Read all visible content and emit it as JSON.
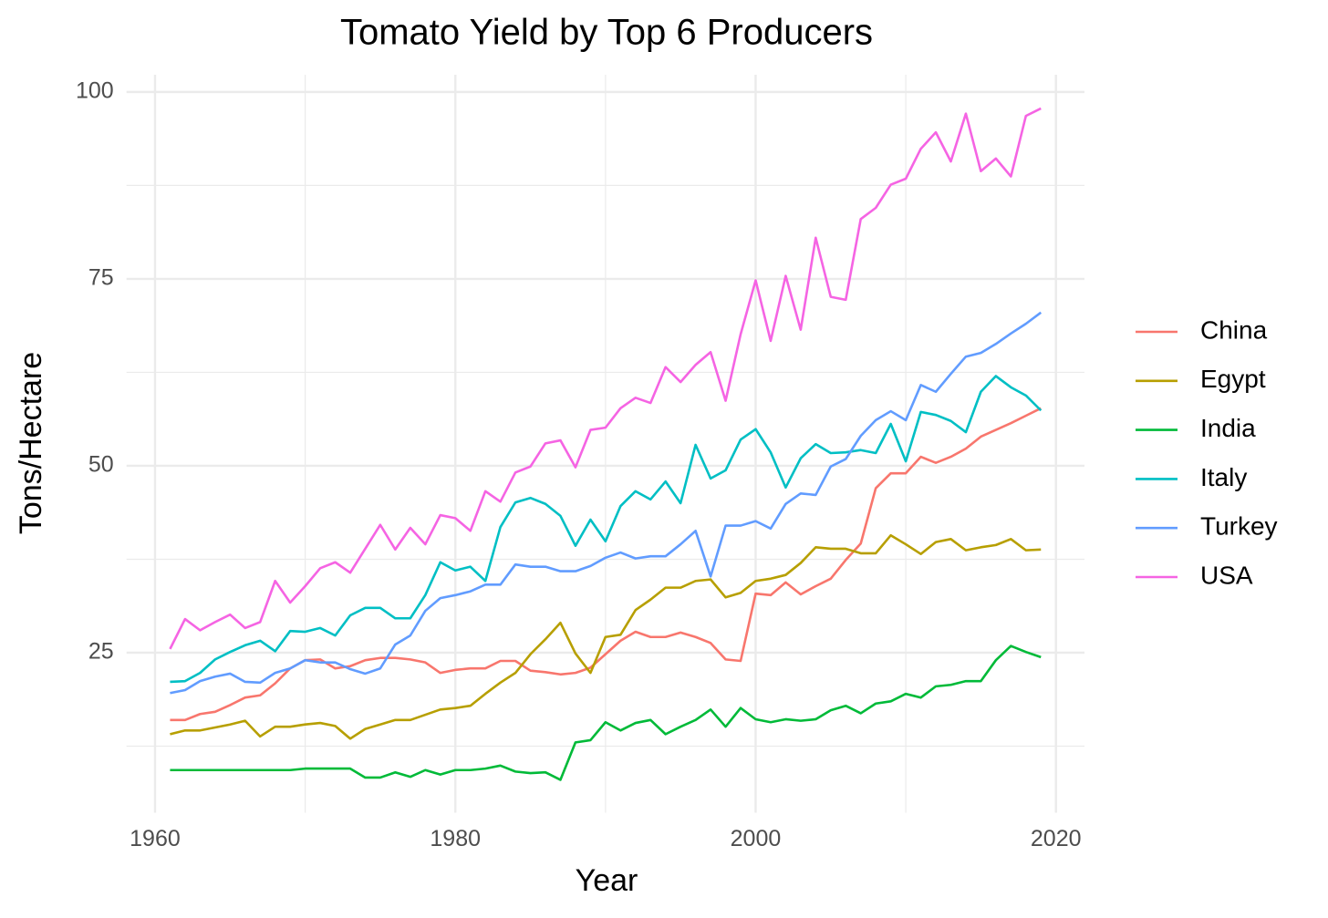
{
  "chart_data": {
    "type": "line",
    "title": "Tomato Yield by Top 6 Producers",
    "x_label": "Year",
    "y_label": "Tons/Hectare",
    "x": [
      1961,
      1962,
      1963,
      1964,
      1965,
      1966,
      1967,
      1968,
      1969,
      1970,
      1971,
      1972,
      1973,
      1974,
      1975,
      1976,
      1977,
      1978,
      1979,
      1980,
      1981,
      1982,
      1983,
      1984,
      1985,
      1986,
      1987,
      1988,
      1989,
      1990,
      1991,
      1992,
      1993,
      1994,
      1995,
      1996,
      1997,
      1998,
      1999,
      2000,
      2001,
      2002,
      2003,
      2004,
      2005,
      2006,
      2007,
      2008,
      2009,
      2010,
      2011,
      2012,
      2013,
      2014,
      2015,
      2016,
      2017,
      2018,
      2019
    ],
    "series": [
      {
        "name": "China",
        "color": "#F8766D",
        "values": [
          16.0,
          16.0,
          16.8,
          17.1,
          18.0,
          19.0,
          19.3,
          20.9,
          22.9,
          24.0,
          24.1,
          22.9,
          23.2,
          24.0,
          24.3,
          24.3,
          24.1,
          23.7,
          22.3,
          22.7,
          22.9,
          22.9,
          23.9,
          23.9,
          22.6,
          22.4,
          22.1,
          22.3,
          23.0,
          24.8,
          26.6,
          27.8,
          27.1,
          27.1,
          27.7,
          27.1,
          26.3,
          24.1,
          23.9,
          32.9,
          32.7,
          34.4,
          32.8,
          33.9,
          34.9,
          37.4,
          39.6,
          47.0,
          49.0,
          49.0,
          51.2,
          50.4,
          51.2,
          52.3,
          53.9,
          54.8,
          55.7,
          56.7,
          57.7
        ]
      },
      {
        "name": "Egypt",
        "color": "#B79F00",
        "values": [
          14.1,
          14.6,
          14.6,
          15.0,
          15.4,
          15.9,
          13.8,
          15.1,
          15.1,
          15.4,
          15.6,
          15.2,
          13.5,
          14.8,
          15.4,
          16.0,
          16.0,
          16.7,
          17.4,
          17.6,
          17.9,
          19.5,
          21.0,
          22.3,
          24.8,
          26.8,
          29.0,
          24.9,
          22.3,
          27.1,
          27.4,
          30.7,
          32.1,
          33.7,
          33.7,
          34.6,
          34.8,
          32.4,
          33.0,
          34.6,
          34.9,
          35.4,
          37.0,
          39.1,
          38.9,
          38.9,
          38.3,
          38.3,
          40.7,
          39.5,
          38.2,
          39.8,
          40.2,
          38.7,
          39.1,
          39.4,
          40.2,
          38.7,
          38.8
        ]
      },
      {
        "name": "India",
        "color": "#00BA38",
        "values": [
          9.3,
          9.3,
          9.3,
          9.3,
          9.3,
          9.3,
          9.3,
          9.3,
          9.3,
          9.5,
          9.5,
          9.5,
          9.5,
          8.3,
          8.3,
          9.0,
          8.4,
          9.3,
          8.7,
          9.3,
          9.3,
          9.5,
          9.9,
          9.1,
          8.9,
          9.0,
          8.0,
          13.0,
          13.3,
          15.7,
          14.6,
          15.6,
          16.0,
          14.1,
          15.1,
          16.0,
          17.4,
          15.1,
          17.6,
          16.1,
          15.7,
          16.1,
          15.9,
          16.1,
          17.3,
          17.9,
          16.9,
          18.2,
          18.5,
          19.5,
          19.0,
          20.5,
          20.7,
          21.2,
          21.2,
          24.0,
          25.9,
          25.1,
          24.4
        ]
      },
      {
        "name": "Italy",
        "color": "#00BFC4",
        "values": [
          21.1,
          21.2,
          22.3,
          24.1,
          25.1,
          26.0,
          26.6,
          25.2,
          27.9,
          27.8,
          28.3,
          27.3,
          30.0,
          31.0,
          31.0,
          29.6,
          29.6,
          32.7,
          37.1,
          36.0,
          36.5,
          34.6,
          41.8,
          45.1,
          45.7,
          44.9,
          43.3,
          39.3,
          42.8,
          39.9,
          44.6,
          46.6,
          45.5,
          47.9,
          45.0,
          52.8,
          48.3,
          49.4,
          53.5,
          54.9,
          51.8,
          47.1,
          51.0,
          52.9,
          51.7,
          51.8,
          52.1,
          51.7,
          55.6,
          50.6,
          57.2,
          56.8,
          56.0,
          54.5,
          59.9,
          62.0,
          60.5,
          59.4,
          57.4
        ]
      },
      {
        "name": "Turkey",
        "color": "#619CFF",
        "values": [
          19.6,
          20.0,
          21.2,
          21.8,
          22.2,
          21.1,
          21.0,
          22.3,
          22.9,
          24.0,
          23.7,
          23.7,
          22.8,
          22.2,
          22.9,
          26.1,
          27.3,
          30.6,
          32.3,
          32.7,
          33.2,
          34.1,
          34.1,
          36.8,
          36.5,
          36.5,
          35.9,
          35.9,
          36.6,
          37.7,
          38.4,
          37.6,
          37.9,
          37.9,
          39.5,
          41.3,
          35.2,
          42.0,
          42.0,
          42.6,
          41.6,
          44.9,
          46.3,
          46.1,
          49.9,
          50.9,
          54.0,
          56.1,
          57.3,
          56.1,
          60.8,
          59.9,
          62.3,
          64.6,
          65.1,
          66.3,
          67.7,
          69.0,
          70.5
        ]
      },
      {
        "name": "USA",
        "color": "#F564E3",
        "values": [
          25.5,
          29.5,
          28.0,
          29.1,
          30.1,
          28.3,
          29.1,
          34.6,
          31.7,
          33.9,
          36.3,
          37.1,
          35.7,
          38.9,
          42.1,
          38.8,
          41.7,
          39.5,
          43.4,
          43.0,
          41.3,
          46.6,
          45.2,
          49.1,
          49.9,
          53.0,
          53.4,
          49.8,
          54.8,
          55.1,
          57.7,
          59.1,
          58.4,
          63.2,
          61.2,
          63.5,
          65.2,
          58.7,
          67.6,
          74.8,
          66.7,
          75.4,
          68.2,
          80.5,
          72.6,
          72.2,
          83.0,
          84.5,
          87.6,
          88.4,
          92.4,
          94.6,
          90.7,
          97.1,
          89.4,
          91.1,
          88.7,
          96.8,
          97.8
        ]
      }
    ],
    "xlim": [
      1958.1,
      2021.9
    ],
    "xticks": [
      1960,
      1980,
      2000,
      2020
    ],
    "ylim": [
      3.6,
      102.3
    ],
    "yticks": [
      25,
      50,
      75,
      100
    ],
    "grid": true,
    "minor_grid": true,
    "legend": "right"
  }
}
